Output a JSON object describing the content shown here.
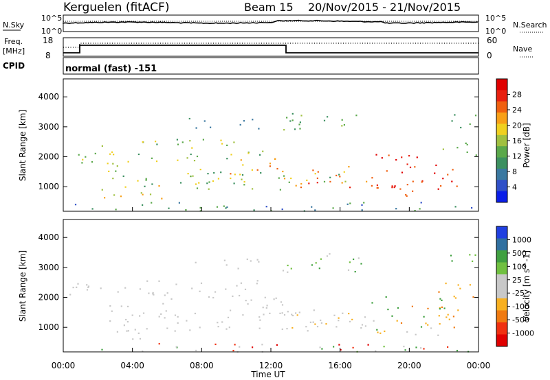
{
  "header": {
    "station": "Kerguelen (fitACF)",
    "beam": "Beam 15",
    "dates": "20/Nov/2015 - 21/Nov/2015"
  },
  "side_labels": {
    "nsky": "N.Sky",
    "nsearch": "N.Search",
    "freq": "Freq.",
    "freq_unit": "[MHz]",
    "nave": "Nave",
    "cpid": "CPID"
  },
  "noise_axis": {
    "left_ticks": [
      "10^5",
      "10^0"
    ],
    "right_ticks": [
      "10^5",
      "10^0"
    ]
  },
  "freq_axis": {
    "left_ticks": [
      "18",
      "8"
    ],
    "right_ticks": [
      "60",
      "0"
    ]
  },
  "cpid_text": "normal (fast) -151",
  "colors": {
    "power": [
      "#0a1ee8",
      "#3050c8",
      "#3a78a0",
      "#3c9060",
      "#5aa84a",
      "#a0c040",
      "#f0d020",
      "#f8a018",
      "#f06010",
      "#e82010",
      "#e00000"
    ],
    "velocity": [
      "#e00000",
      "#f03010",
      "#f07a10",
      "#f8b020",
      "#c8c8c8",
      "#c8c8c8",
      "#70c040",
      "#40a040",
      "#3070a0",
      "#2040e0"
    ]
  },
  "chart_data": [
    {
      "type": "heatmap",
      "name": "power-panel",
      "xlabel": "",
      "ylabel": "Slant Range [km]",
      "ylim": [
        180,
        4600
      ],
      "yticks": [
        1000,
        2000,
        3000,
        4000
      ],
      "colorbar": {
        "label": "Power [dB]",
        "range": [
          0,
          32
        ],
        "ticks": [
          "4",
          "8",
          "12",
          "16",
          "20",
          "24",
          "28"
        ]
      }
    },
    {
      "type": "heatmap",
      "name": "velocity-panel",
      "xlabel": "Time UT",
      "ylabel": "Slant Range [km]",
      "ylim": [
        180,
        4600
      ],
      "yticks": [
        1000,
        2000,
        3000,
        4000
      ],
      "xticks": [
        "00:00",
        "04:00",
        "08:00",
        "12:00",
        "16:00",
        "20:00",
        "00:00"
      ],
      "colorbar": {
        "label": "Velocity [m s^-1]",
        "ticks": [
          "1000",
          "500",
          "100",
          "25",
          "-25",
          "-100",
          "-500",
          "-1000"
        ]
      }
    }
  ]
}
